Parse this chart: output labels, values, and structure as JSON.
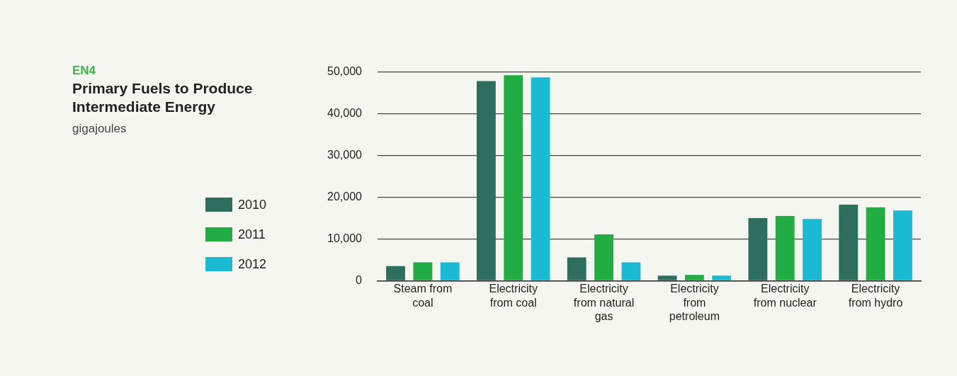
{
  "chart_data": {
    "type": "bar",
    "title": "Primary Fuels to Produce Intermediate Energy",
    "subtitle": "gigajoules",
    "annotations": [
      "EN4"
    ],
    "categories": [
      "Steam from coal",
      "Electricity from coal",
      "Electricity from natural gas",
      "Electricity from petroleum",
      "Electricity from nuclear",
      "Electricity from hydro"
    ],
    "series": [
      {
        "name": "2010",
        "color": "#2e6e5e",
        "values": [
          3500,
          47800,
          5600,
          1200,
          15000,
          18200
        ]
      },
      {
        "name": "2011",
        "color": "#21ad44",
        "values": [
          4400,
          49200,
          11100,
          1400,
          15500,
          17600
        ]
      },
      {
        "name": "2012",
        "color": "#1bbad3",
        "values": [
          4400,
          48700,
          4400,
          1200,
          14800,
          16800
        ]
      }
    ],
    "ylim": [
      0,
      50000
    ],
    "yticks": [
      0,
      {
        "value": 10000,
        "label": "10,000"
      },
      {
        "value": 20000,
        "label": "20,000"
      },
      {
        "value": 30000,
        "label": "30,000"
      },
      {
        "value": 40000,
        "label": "40,000"
      },
      {
        "value": 50000,
        "label": "50,000"
      }
    ],
    "grid": "y",
    "legend": "left"
  }
}
